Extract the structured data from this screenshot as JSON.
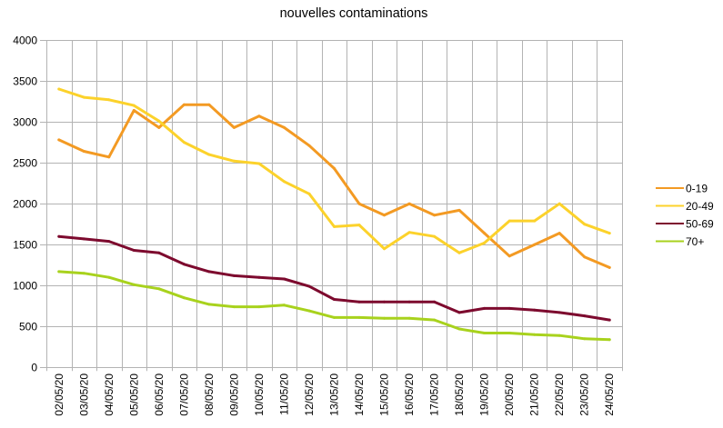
{
  "chart_data": {
    "type": "line",
    "title": "nouvelles contaminations",
    "xlabel": "",
    "ylabel": "",
    "ylim": [
      0,
      4000
    ],
    "yticks": [
      0,
      500,
      1000,
      1500,
      2000,
      2500,
      3000,
      3500,
      4000
    ],
    "grid": true,
    "legend_position": "right",
    "categories": [
      "02/05/20",
      "03/05/20",
      "04/05/20",
      "05/05/20",
      "06/05/20",
      "07/05/20",
      "08/05/20",
      "09/05/20",
      "10/05/20",
      "11/05/20",
      "12/05/20",
      "13/05/20",
      "14/05/20",
      "15/05/20",
      "16/05/20",
      "17/05/20",
      "18/05/20",
      "19/05/20",
      "20/05/20",
      "21/05/20",
      "22/05/20",
      "23/05/20",
      "24/05/20"
    ],
    "series": [
      {
        "name": "0-19",
        "color": "#f39a23",
        "values": [
          2780,
          2640,
          2570,
          3140,
          2930,
          3210,
          3210,
          2930,
          3070,
          2930,
          2710,
          2430,
          2000,
          1860,
          2000,
          1860,
          1920,
          1640,
          1360,
          1500,
          1640,
          1350,
          1220
        ]
      },
      {
        "name": "20-49",
        "color": "#fcd22b",
        "values": [
          3400,
          3300,
          3270,
          3200,
          3010,
          2750,
          2600,
          2520,
          2490,
          2270,
          2120,
          1720,
          1740,
          1450,
          1650,
          1600,
          1400,
          1520,
          1790,
          1790,
          2000,
          1750,
          1640
        ]
      },
      {
        "name": "50-69",
        "color": "#7d0a2e",
        "values": [
          1600,
          1570,
          1540,
          1430,
          1400,
          1260,
          1170,
          1120,
          1100,
          1080,
          990,
          830,
          800,
          800,
          800,
          800,
          670,
          720,
          720,
          700,
          670,
          630,
          580
        ]
      },
      {
        "name": "70+",
        "color": "#a8d21d",
        "values": [
          1170,
          1150,
          1100,
          1010,
          960,
          850,
          770,
          740,
          740,
          760,
          690,
          610,
          610,
          600,
          600,
          580,
          470,
          420,
          420,
          400,
          390,
          350,
          340
        ]
      }
    ]
  }
}
